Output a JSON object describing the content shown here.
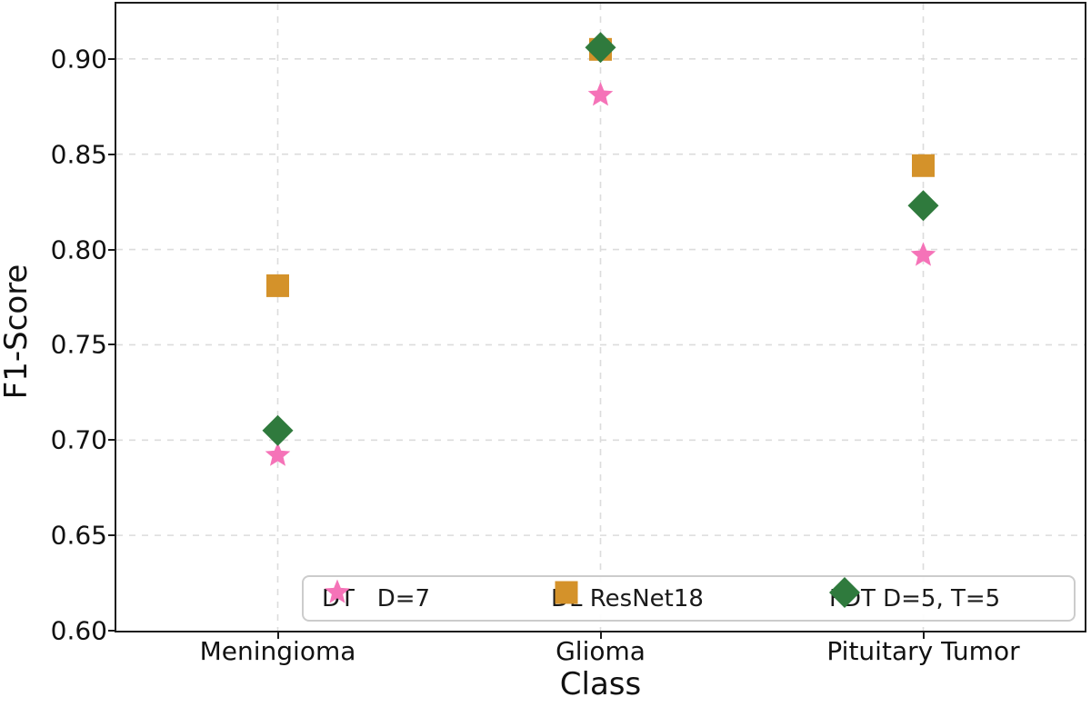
{
  "chart_data": {
    "type": "scatter",
    "title": "",
    "xlabel": "Class",
    "ylabel": "F1-Score",
    "categories": [
      "Meningioma",
      "Glioma",
      "Pituitary Tumor"
    ],
    "y_ticks": [
      0.6,
      0.65,
      0.7,
      0.75,
      0.8,
      0.85,
      0.9
    ],
    "ylim": [
      0.6,
      0.929
    ],
    "grid": "dashed, light gray, both axes",
    "legend_position": "lower center inside plot",
    "series": [
      {
        "name": "DT   D=7",
        "marker": "star",
        "color": "#f573b8",
        "values": [
          0.692,
          0.881,
          0.797
        ]
      },
      {
        "name": "DL ResNet18",
        "marker": "square",
        "color": "#d4922a",
        "values": [
          0.781,
          0.905,
          0.844
        ]
      },
      {
        "name": "FDT D=5, T=5",
        "marker": "diamond",
        "color": "#2f7a3d",
        "values": [
          0.705,
          0.906,
          0.823
        ]
      }
    ]
  },
  "colors": {
    "background": "#ffffff",
    "axis": "#1c1c1c",
    "grid": "#dcdcdc",
    "text": "#1a1a1a",
    "legend_border": "#cccccc"
  }
}
